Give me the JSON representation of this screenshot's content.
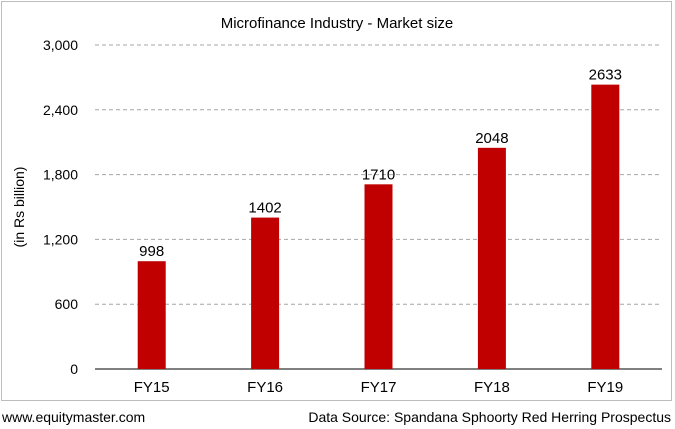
{
  "chart_data": {
    "type": "bar",
    "title": "Microfinance Industry - Market size",
    "xlabel": "",
    "ylabel": "(in Rs billion)",
    "categories": [
      "FY15",
      "FY16",
      "FY17",
      "FY18",
      "FY19"
    ],
    "values": [
      998,
      1402,
      1710,
      2048,
      2633
    ],
    "data_labels": [
      "998",
      "1402",
      "1710",
      "2048",
      "2633"
    ],
    "ylim": [
      0,
      3000
    ],
    "yticks": [
      0,
      600,
      1200,
      1800,
      2400,
      3000
    ],
    "ytick_labels": [
      "0",
      "600",
      "1,200",
      "1,800",
      "2,400",
      "3,000"
    ],
    "bar_color": "#c00000",
    "grid": "horizontal-dashed",
    "legend": "none"
  },
  "footer": {
    "website": "www.equitymaster.com",
    "source": "Data Source: Spandana Sphoorty Red Herring Prospectus"
  }
}
